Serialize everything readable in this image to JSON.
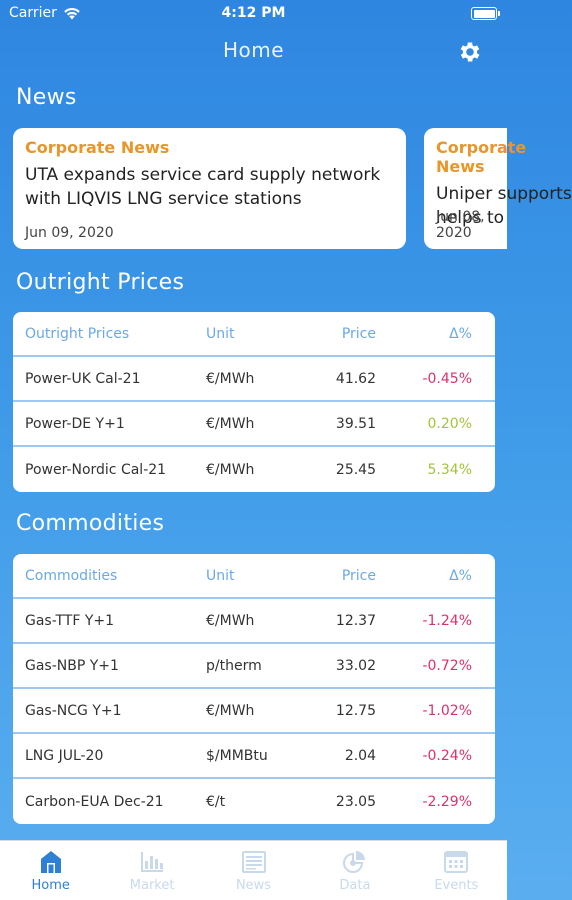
{
  "status": {
    "carrier": "Carrier",
    "time": "4:12 PM"
  },
  "nav": {
    "title": "Home"
  },
  "sections": {
    "news": "News",
    "outright": "Outright Prices",
    "commodities": "Commodities"
  },
  "news": [
    {
      "category": "Corporate News",
      "line1": "UTA expands service card supply network",
      "line2": "with LIQVIS LNG service stations",
      "date": "Jun 09, 2020"
    },
    {
      "category": "Corporate News",
      "line1": "Uniper supports",
      "line2": "helps to",
      "date": "Jun 08, 2020"
    }
  ],
  "outright": {
    "headers": {
      "name": "Outright Prices",
      "unit": "Unit",
      "price": "Price",
      "delta": "Δ%"
    },
    "rows": [
      {
        "name": "Power-UK Cal-21",
        "unit": "€/MWh",
        "price": "41.62",
        "delta": "-0.45%"
      },
      {
        "name": "Power-DE Y+1",
        "unit": "€/MWh",
        "price": "39.51",
        "delta": "0.20%"
      },
      {
        "name": "Power-Nordic Cal-21",
        "unit": "€/MWh",
        "price": "25.45",
        "delta": "5.34%"
      }
    ]
  },
  "commodities": {
    "headers": {
      "name": "Commodities",
      "unit": "Unit",
      "price": "Price",
      "delta": "Δ%"
    },
    "rows": [
      {
        "name": "Gas-TTF Y+1",
        "unit": "€/MWh",
        "price": "12.37",
        "delta": "-1.24%"
      },
      {
        "name": "Gas-NBP Y+1",
        "unit": "p/therm",
        "price": "33.02",
        "delta": "-0.72%"
      },
      {
        "name": "Gas-NCG Y+1",
        "unit": "€/MWh",
        "price": "12.75",
        "delta": "-1.02%"
      },
      {
        "name": "LNG JUL-20",
        "unit": "$/MMBtu",
        "price": "2.04",
        "delta": "-0.24%"
      },
      {
        "name": "Carbon-EUA Dec-21",
        "unit": "€/t",
        "price": "23.05",
        "delta": "-2.29%"
      }
    ]
  },
  "tabs": [
    {
      "label": "Home",
      "icon": "home-icon",
      "active": true
    },
    {
      "label": "Market",
      "icon": "bar-chart-icon"
    },
    {
      "label": "News",
      "icon": "newspaper-icon"
    },
    {
      "label": "Data",
      "icon": "pie-chart-icon"
    },
    {
      "label": "Events",
      "icon": "calendar-icon"
    }
  ],
  "colors": {
    "accent": "#2f7fd6",
    "negative": "#d9336b",
    "positive": "#a4c43c",
    "news_category": "#e8962a"
  }
}
